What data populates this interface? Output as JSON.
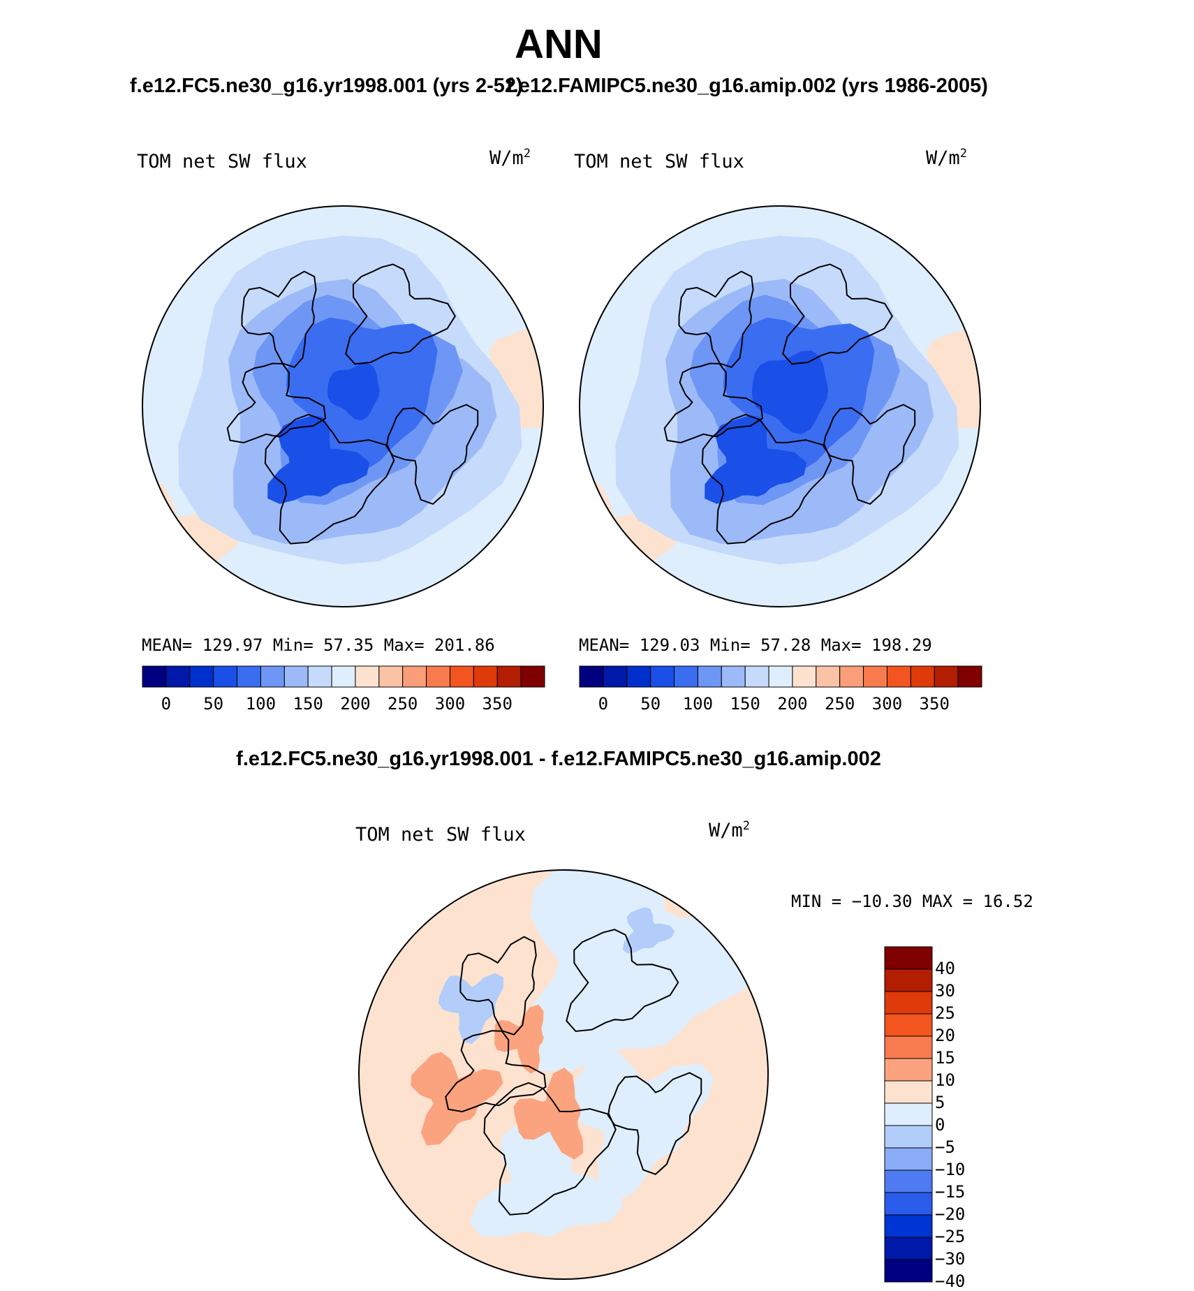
{
  "title": "ANN",
  "panel_titles": [
    "f.e12.FC5.ne30_g16.yr1998.001 (yrs 2-52)",
    "f.e12.FAMIPC5.ne30_g16.amip.002 (yrs 1986-2005)"
  ],
  "diff_title": "f.e12.FC5.ne30_g16.yr1998.001 - f.e12.FAMIPC5.ne30_g16.amip.002",
  "colors": {
    "seq": [
      "#000080",
      "#0019a8",
      "#0030cc",
      "#1a4fe8",
      "#3a6df0",
      "#6e96f5",
      "#9cbaf8",
      "#c6dafb",
      "#deeefc",
      "#fde2d0",
      "#fbc3a6",
      "#f99e78",
      "#f77b4e",
      "#f2551f",
      "#de3a0a",
      "#b31d00",
      "#800000"
    ],
    "diff": [
      "#800000",
      "#b31d00",
      "#de3a0a",
      "#f2551f",
      "#f77b4e",
      "#fba37e",
      "#fde2d0",
      "#deeefc",
      "#b3cdfa",
      "#8aacf7",
      "#4e7bf2",
      "#2a5cec",
      "#0035d4",
      "#0019a8",
      "#000080"
    ],
    "land_outline": "#000000"
  },
  "chart_data": [
    {
      "type": "heatmap",
      "projection": "north-polar-stereographic",
      "variable": "TOM net SW flux",
      "units": "W/m",
      "units_sup": "2",
      "stats": {
        "mean": "129.97",
        "min": "57.35",
        "max": "201.86"
      },
      "stats_text": "MEAN= 129.97   Min=  57.35   Max= 201.86",
      "colorbar_levels": [
        0,
        50,
        100,
        150,
        200,
        250,
        300,
        350
      ],
      "colorbar_tick_labels": [
        "0",
        "50",
        "100",
        "150",
        "200",
        "250",
        "300",
        "350"
      ]
    },
    {
      "type": "heatmap",
      "projection": "north-polar-stereographic",
      "variable": "TOM net SW flux",
      "units": "W/m",
      "units_sup": "2",
      "stats": {
        "mean": "129.03",
        "min": "57.28",
        "max": "198.29"
      },
      "stats_text": "MEAN= 129.03   Min=  57.28   Max= 198.29",
      "colorbar_levels": [
        0,
        50,
        100,
        150,
        200,
        250,
        300,
        350
      ],
      "colorbar_tick_labels": [
        "0",
        "50",
        "100",
        "150",
        "200",
        "250",
        "300",
        "350"
      ]
    },
    {
      "type": "heatmap",
      "projection": "north-polar-stereographic",
      "variable": "TOM net SW flux",
      "units": "W/m",
      "units_sup": "2",
      "stats": {
        "min": "-10.30",
        "max": "16.52"
      },
      "stats_text": "MIN = −10.30 MAX =   16.52",
      "colorbar_levels": [
        40,
        30,
        25,
        20,
        15,
        10,
        5,
        0,
        -5,
        -10,
        -15,
        -20,
        -25,
        -30,
        -40
      ],
      "colorbar_tick_labels": [
        "40",
        "30",
        "25",
        "20",
        "15",
        "10",
        "5",
        "0",
        "−5",
        "−10",
        "−15",
        "−20",
        "−25",
        "−30",
        "−40"
      ]
    }
  ]
}
